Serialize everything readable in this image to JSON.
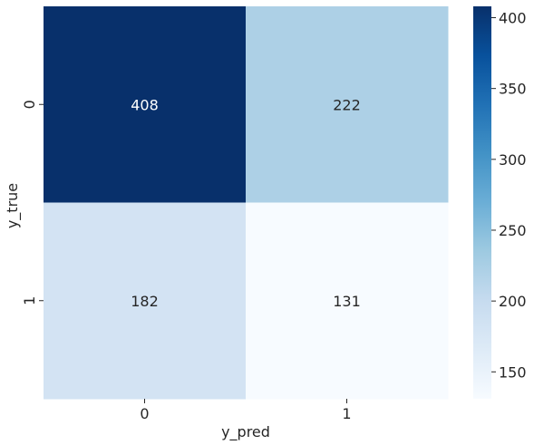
{
  "chart_data": {
    "type": "heatmap",
    "title": "",
    "xlabel": "y_pred",
    "ylabel": "y_true",
    "x_categories": [
      "0",
      "1"
    ],
    "y_categories": [
      "0",
      "1"
    ],
    "values": [
      [
        408,
        222
      ],
      [
        182,
        131
      ]
    ],
    "colorbar": {
      "cmap": "Blues",
      "min": 131,
      "max": 408,
      "ticks": [
        150,
        200,
        250,
        300,
        350,
        400
      ]
    },
    "annotations": true,
    "legend": "right colorbar"
  }
}
